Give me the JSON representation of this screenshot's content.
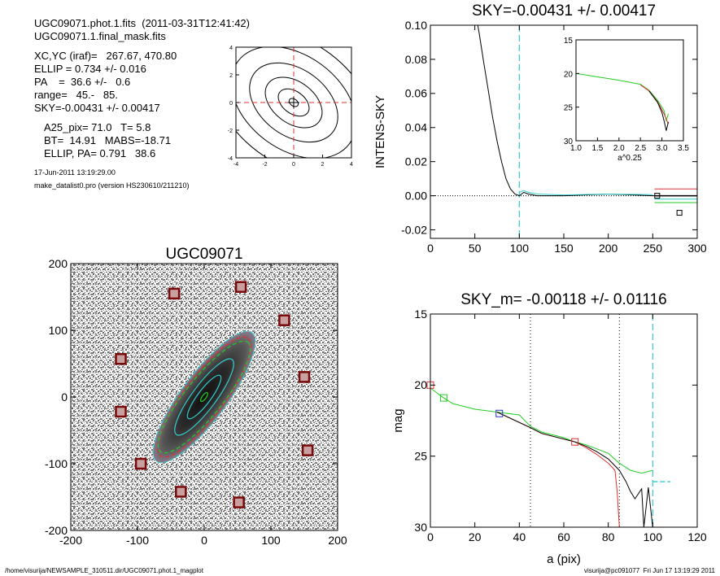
{
  "header": {
    "file_line": "UGC09071.phot.1.fits  (2011-03-31T12:41:42)",
    "mask_line": "UGC09071.1.final_mask.fits",
    "params": [
      "XC,YC (iraf)=   267.67, 470.80",
      "ELLIP = 0.734 +/- 0.016",
      "PA    =  36.6 +/-   0.6",
      "range=   45.-   85.",
      "SKY=-0.00431 +/- 0.00417"
    ],
    "params2": [
      "A25_pix= 71.0   T= 5.8",
      "BT=  14.91   MABS=-18.71",
      "ELLIP, PA= 0.791   38.6"
    ],
    "date": "17-Jun-2011 13:19:29.00",
    "program": "make_datalist0.pro (version HS230610/211210)"
  },
  "footer": {
    "left": "/home/visurija/NEWSAMPLE_310511.dir/UGC09071.phot.1_magplot",
    "right": "visurija@pc091077  Fri Jun 17 13:19:29 2011"
  },
  "colors": {
    "red": "#e03030",
    "green": "#22cc22",
    "cyan": "#33cccc",
    "blue": "#2233cc",
    "dark_red": "#7a0a0a",
    "black": "#000000"
  },
  "chart_data": [
    {
      "id": "contour",
      "type": "line",
      "title": "",
      "xticks": [
        "-4",
        "-2",
        "0",
        "2",
        "4"
      ],
      "yticks": [
        "-4",
        "-2",
        "0",
        "2",
        "4"
      ],
      "xlim": [
        -4,
        4
      ],
      "ylim": [
        -4,
        4
      ],
      "contour_levels": [
        {
          "a": 0.35,
          "b": 0.25
        },
        {
          "a": 1.2,
          "b": 0.8
        },
        {
          "a": 2.2,
          "b": 1.5
        },
        {
          "a": 3.4,
          "b": 2.4
        },
        {
          "a": 4.8,
          "b": 3.4
        },
        {
          "a": 6.2,
          "b": 4.4
        }
      ],
      "crosshair": [
        0,
        0
      ]
    },
    {
      "id": "sky_profile",
      "type": "line",
      "title": "SKY=-0.00431 +/- 0.00417",
      "ylabel": "INTENS-SKY",
      "xlabel": "",
      "xlim": [
        0,
        300
      ],
      "ylim": [
        -0.025,
        0.1
      ],
      "xticks": [
        "0",
        "50",
        "100",
        "150",
        "200",
        "250",
        "300"
      ],
      "yticks": [
        "-0.02",
        "0.00",
        "0.02",
        "0.04",
        "0.06",
        "0.08",
        "0.10"
      ],
      "vline": 100,
      "series": [
        {
          "color": "black",
          "x": [
            50,
            55,
            60,
            65,
            70,
            75,
            80,
            85,
            90,
            95,
            100,
            105,
            110,
            120,
            150,
            200,
            250,
            300
          ],
          "y": [
            0.11,
            0.095,
            0.078,
            0.062,
            0.046,
            0.032,
            0.02,
            0.01,
            0.004,
            0.001,
            0.0,
            0.002,
            0.001,
            0.0,
            0.0,
            0.001,
            0.0,
            0.0
          ]
        },
        {
          "color": "cyan",
          "x": [
            100,
            105,
            110,
            120,
            150,
            200,
            250
          ],
          "y": [
            0.002,
            0.003,
            0.002,
            0.001,
            0.0005,
            0.001,
            0.0006
          ]
        }
      ],
      "side_lines": [
        {
          "color": "red",
          "y": 0.004
        },
        {
          "color": "black",
          "y": 0.0
        },
        {
          "color": "cyan",
          "y": -0.002
        },
        {
          "color": "green",
          "y": -0.004
        }
      ],
      "markers": [
        {
          "x": 255,
          "y": 0.0
        },
        {
          "x": 280,
          "y": -0.01
        }
      ],
      "inset": {
        "xlabel": "a^0.25",
        "xlim": [
          1.0,
          3.5
        ],
        "ylim": [
          15,
          30
        ],
        "xticks": [
          "1.0",
          "1.5",
          "2.0",
          "2.5",
          "3.0",
          "3.5"
        ],
        "yticks": [
          "15",
          "20",
          "25",
          "30"
        ],
        "series": [
          {
            "color": "green",
            "x": [
              1.0,
              1.5,
              2.0,
              2.5,
              2.7,
              2.9,
              3.05,
              3.1,
              3.15
            ],
            "y": [
              20.0,
              20.5,
              21.0,
              21.6,
              22.5,
              24.0,
              25.5,
              27.0,
              26.0
            ]
          },
          {
            "color": "red",
            "x": [
              2.5,
              2.7,
              2.9,
              3.05,
              3.15
            ],
            "y": [
              21.7,
              22.6,
              24.2,
              26.0,
              27.5
            ]
          },
          {
            "color": "black",
            "x": [
              2.7,
              2.9,
              3.0,
              3.05,
              3.1,
              3.15
            ],
            "y": [
              22.6,
              24.3,
              25.8,
              27.0,
              28.5,
              27.2
            ]
          }
        ]
      }
    },
    {
      "id": "image",
      "type": "scatter",
      "title": "UGC09071",
      "xlim": [
        -200,
        200
      ],
      "ylim": [
        -200,
        200
      ],
      "xticks": [
        "-200",
        "-100",
        "0",
        "100",
        "200"
      ],
      "yticks": [
        "-200",
        "-100",
        "0",
        "100",
        "200"
      ],
      "masked_stars": [
        {
          "x": -45,
          "y": 155
        },
        {
          "x": 55,
          "y": 165
        },
        {
          "x": 120,
          "y": 115
        },
        {
          "x": -125,
          "y": 57
        },
        {
          "x": 150,
          "y": 30
        },
        {
          "x": -125,
          "y": -22
        },
        {
          "x": 155,
          "y": -80
        },
        {
          "x": -95,
          "y": -100
        },
        {
          "x": -35,
          "y": -142
        },
        {
          "x": 52,
          "y": -158
        }
      ],
      "ellipses": [
        {
          "a": 120,
          "b": 34,
          "pa": 36.6,
          "color": "cyan"
        },
        {
          "a": 110,
          "b": 30,
          "pa": 36.6,
          "color": "red"
        },
        {
          "a": 105,
          "b": 28,
          "pa": 38.6,
          "color": "green"
        },
        {
          "a": 70,
          "b": 18,
          "pa": 36.6,
          "color": "cyan"
        },
        {
          "a": 40,
          "b": 10,
          "pa": 36.6,
          "color": "cyan"
        },
        {
          "a": 8,
          "b": 3,
          "pa": 36.6,
          "color": "green"
        }
      ]
    },
    {
      "id": "mag_profile",
      "type": "line",
      "title": "SKY_m= -0.00118 +/- 0.01116",
      "ylabel": "mag",
      "xlabel": "a (pix)",
      "xlim": [
        0,
        120
      ],
      "ylim": [
        15,
        30
      ],
      "xticks": [
        "0",
        "20",
        "40",
        "60",
        "80",
        "100",
        "120"
      ],
      "yticks": [
        "15",
        "20",
        "25",
        "30"
      ],
      "vlines": [
        {
          "x": 45,
          "style": "dotted"
        },
        {
          "x": 85,
          "style": "dotted"
        },
        {
          "x": 100,
          "style": "dashed-cyan"
        }
      ],
      "series": [
        {
          "color": "green",
          "x": [
            0,
            5,
            10,
            20,
            30,
            40,
            45,
            50,
            60,
            65,
            70,
            80,
            85,
            90,
            95,
            100
          ],
          "y": [
            20.2,
            20.8,
            21.3,
            21.7,
            21.9,
            22.1,
            22.9,
            23.3,
            23.7,
            24.0,
            24.2,
            24.8,
            25.5,
            26.0,
            26.2,
            26.0
          ]
        },
        {
          "color": "red",
          "x": [
            30,
            45,
            50,
            60,
            65,
            70,
            75,
            80,
            83,
            84,
            85
          ],
          "y": [
            21.9,
            23.0,
            23.4,
            23.8,
            24.0,
            24.4,
            24.9,
            25.5,
            26.0,
            27.5,
            30.0
          ]
        },
        {
          "color": "black",
          "x": [
            30,
            45,
            50,
            60,
            65,
            70,
            75,
            80,
            85,
            88,
            90,
            92,
            95,
            96,
            98,
            100
          ],
          "y": [
            21.9,
            23.0,
            23.4,
            23.8,
            24.0,
            24.3,
            24.7,
            25.2,
            26.0,
            26.8,
            27.5,
            28.0,
            27.3,
            30.0,
            27.2,
            30.0
          ]
        }
      ],
      "markers": [
        {
          "x": 0,
          "y": 20.0,
          "color": "red"
        },
        {
          "x": 6,
          "y": 20.9,
          "color": "green"
        },
        {
          "x": 31,
          "y": 22.0,
          "color": "blue"
        },
        {
          "x": 65,
          "y": 24.0,
          "color": "red"
        }
      ],
      "sky_line": {
        "x": [
          100,
          108
        ],
        "y": 26.8,
        "color": "cyan"
      }
    }
  ]
}
